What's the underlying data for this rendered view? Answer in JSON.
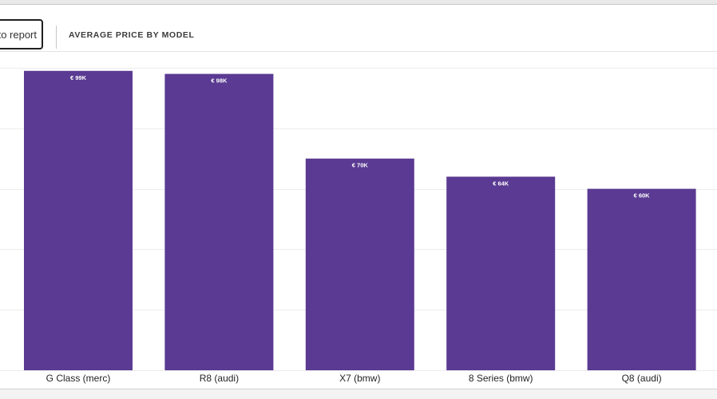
{
  "header": {
    "back_button_label": "to report",
    "visual_title": "AVERAGE PRICE BY MODEL"
  },
  "colors": {
    "bar": "#5a3a92",
    "data_label": "#ffffff",
    "gridline": "#ececec"
  },
  "chart_data": {
    "type": "bar",
    "title": "AVERAGE PRICE BY MODEL",
    "categories": [
      "G Class (merc)",
      "R8 (audi)",
      "X7 (bmw)",
      "8 Series (bmw)",
      "Q8 (audi)"
    ],
    "values": [
      99000,
      98000,
      70000,
      64000,
      60000
    ],
    "data_labels": [
      "€ 99K",
      "€ 98K",
      "€ 70K",
      "€ 64K",
      "€ 60K"
    ],
    "ylim": [
      0,
      100000
    ],
    "grid": true,
    "xlabel": "",
    "ylabel": ""
  }
}
